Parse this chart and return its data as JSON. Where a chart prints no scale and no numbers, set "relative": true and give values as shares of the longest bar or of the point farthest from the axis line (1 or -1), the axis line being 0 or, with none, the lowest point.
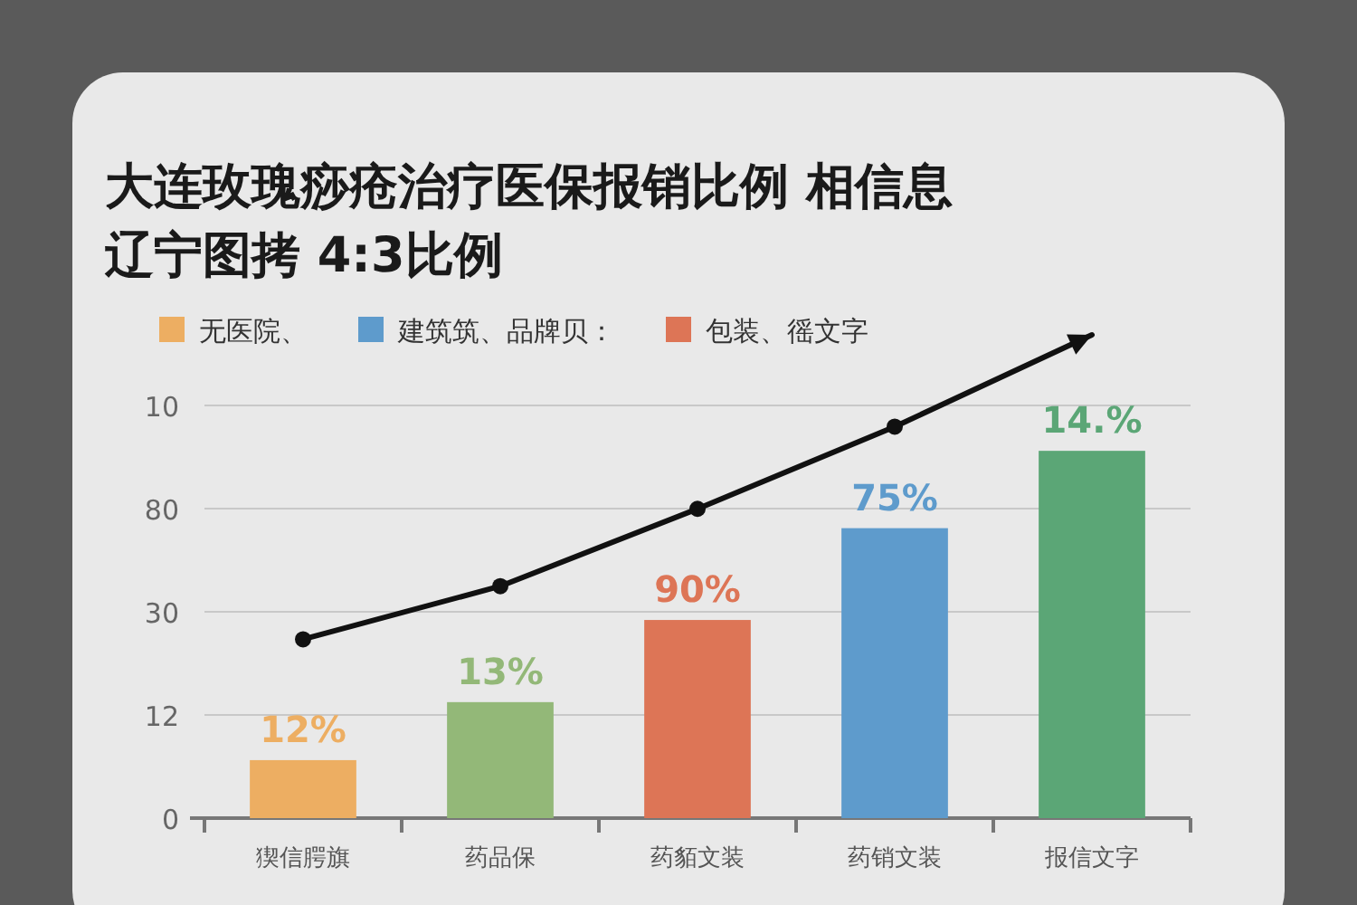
{
  "chart_data": {
    "type": "bar",
    "title": "大连玫瑰痧疮治疗医保报销比例 相信息",
    "subtitle": "辽宁图拷  4:3比例",
    "categories": [
      "猰信腭旗",
      "药品保",
      "药貊文装",
      "药销文装",
      "报信文字"
    ],
    "relative": true,
    "series": [
      {
        "name": "无医院、",
        "color": "#edae62",
        "values": [
          0.12,
          null,
          null,
          null,
          null
        ]
      },
      {
        "name": "建筑筑、品牌贝：",
        "color": "#5e9bcc",
        "values": [
          null,
          null,
          null,
          0.6,
          null
        ]
      },
      {
        "name": "包装、徭文字",
        "color": "#dd7556",
        "values": [
          null,
          null,
          0.41,
          null,
          null
        ]
      },
      {
        "color": "#93b878",
        "values": [
          null,
          0.24,
          null,
          null,
          null
        ]
      },
      {
        "color": "#5ba676",
        "values": [
          null,
          null,
          null,
          null,
          0.76
        ]
      },
      {
        "type": "line",
        "color": "#111111",
        "values": [
          0.37,
          0.48,
          0.64,
          0.81,
          1
        ],
        "marker": "circle"
      }
    ],
    "annotations": [
      "0",
      "12",
      "30",
      "80",
      "10",
      {
        "text": "12%",
        "x": "猰信腭旗",
        "y": 0.12
      },
      {
        "text": "13%",
        "x": "药品保",
        "y": 0.24
      },
      {
        "text": "90%",
        "x": "药貊文装",
        "y": 0.41
      },
      {
        "text": "75%",
        "x": "药销文装",
        "y": 0.6
      },
      {
        "text": "14.%",
        "x": "报信文字",
        "y": 0.76
      }
    ],
    "grid": "y",
    "legend": "top left"
  }
}
